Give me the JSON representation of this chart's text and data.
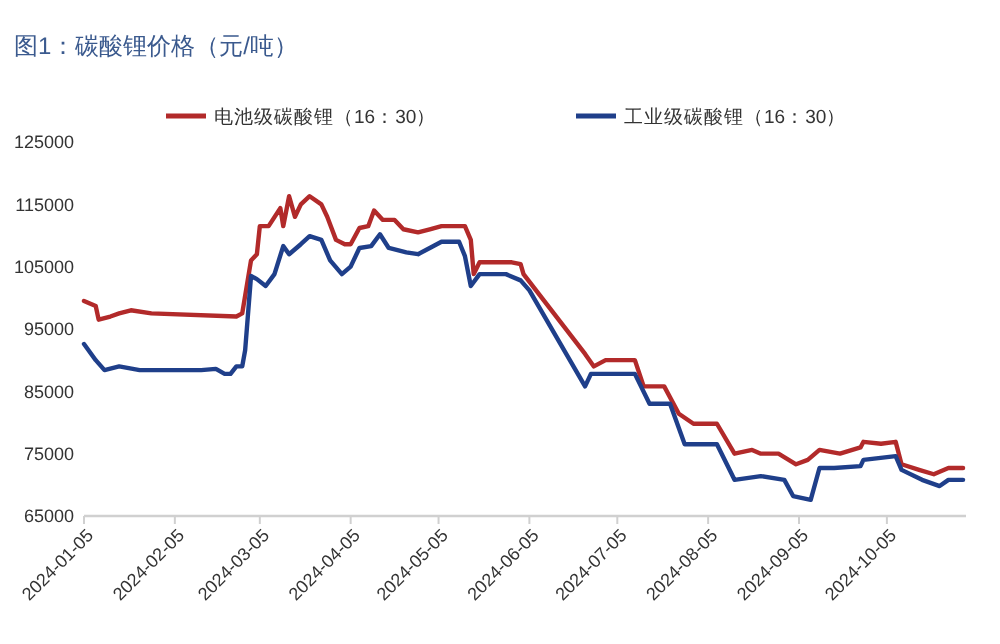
{
  "chart_data": {
    "type": "line",
    "title": "图1：碳酸锂价格（元/吨）",
    "legend": "top",
    "grid": false,
    "marker": "none",
    "line_style": "solid",
    "xlim": [
      "2024-01-05",
      "2024-11-01"
    ],
    "xticks": [
      "2024-01-05",
      "2024-02-05",
      "2024-03-05",
      "2024-04-05",
      "2024-05-05",
      "2024-06-05",
      "2024-07-05",
      "2024-08-05",
      "2024-09-05",
      "2024-10-05"
    ],
    "ylim": [
      65000,
      125000
    ],
    "yticks": [
      65000,
      75000,
      85000,
      95000,
      105000,
      115000,
      125000
    ],
    "series": [
      {
        "name": "电池级碳酸锂（16：30）",
        "color": "#b22a2a",
        "x": [
          "2024-01-05",
          "2024-01-09",
          "2024-01-10",
          "2024-01-14",
          "2024-01-17",
          "2024-01-21",
          "2024-01-28",
          "2024-02-26",
          "2024-02-28",
          "2024-03-02",
          "2024-03-04",
          "2024-03-05",
          "2024-03-08",
          "2024-03-12",
          "2024-03-13",
          "2024-03-15",
          "2024-03-17",
          "2024-03-19",
          "2024-03-22",
          "2024-03-26",
          "2024-03-28",
          "2024-03-31",
          "2024-04-03",
          "2024-04-05",
          "2024-04-08",
          "2024-04-11",
          "2024-04-13",
          "2024-04-16",
          "2024-04-20",
          "2024-04-23",
          "2024-04-28",
          "2024-05-02",
          "2024-05-06",
          "2024-05-14",
          "2024-05-16",
          "2024-05-17",
          "2024-05-19",
          "2024-05-30",
          "2024-06-02",
          "2024-06-03",
          "2024-06-24",
          "2024-06-27",
          "2024-07-01",
          "2024-07-11",
          "2024-07-14",
          "2024-07-21",
          "2024-07-26",
          "2024-07-31",
          "2024-08-08",
          "2024-08-14",
          "2024-08-20",
          "2024-08-23",
          "2024-08-29",
          "2024-09-04",
          "2024-09-08",
          "2024-09-12",
          "2024-09-19",
          "2024-09-26",
          "2024-09-27",
          "2024-10-03",
          "2024-10-08",
          "2024-10-10",
          "2024-10-16",
          "2024-10-21",
          "2024-10-26",
          "2024-10-31"
        ],
        "values": [
          99500,
          98700,
          96500,
          97000,
          97500,
          98000,
          97500,
          97000,
          97500,
          106000,
          107000,
          111500,
          111500,
          114400,
          111500,
          116300,
          113000,
          115000,
          116300,
          115000,
          113000,
          109300,
          108600,
          108600,
          111200,
          111500,
          114000,
          112500,
          112500,
          111000,
          110500,
          111000,
          111500,
          111500,
          109300,
          103800,
          105700,
          105700,
          105400,
          103800,
          91000,
          89000,
          90000,
          90000,
          85800,
          85800,
          81400,
          79800,
          79800,
          75000,
          75600,
          75000,
          75000,
          73300,
          74000,
          75600,
          75000,
          76000,
          76900,
          76600,
          76900,
          73300,
          72400,
          71700,
          72700,
          72700
        ]
      },
      {
        "name": "工业级碳酸锂（16：30）",
        "color": "#1f3f8a",
        "x": [
          "2024-01-05",
          "2024-01-09",
          "2024-01-12",
          "2024-01-17",
          "2024-01-24",
          "2024-02-14",
          "2024-02-19",
          "2024-02-22",
          "2024-02-24",
          "2024-02-26",
          "2024-02-28",
          "2024-02-29",
          "2024-03-02",
          "2024-03-04",
          "2024-03-07",
          "2024-03-10",
          "2024-03-13",
          "2024-03-15",
          "2024-03-19",
          "2024-03-22",
          "2024-03-26",
          "2024-03-29",
          "2024-04-02",
          "2024-04-05",
          "2024-04-08",
          "2024-04-12",
          "2024-04-15",
          "2024-04-18",
          "2024-04-24",
          "2024-04-28",
          "2024-05-02",
          "2024-05-06",
          "2024-05-12",
          "2024-05-14",
          "2024-05-16",
          "2024-05-19",
          "2024-05-28",
          "2024-06-02",
          "2024-06-05",
          "2024-06-24",
          "2024-06-26",
          "2024-07-02",
          "2024-07-11",
          "2024-07-16",
          "2024-07-23",
          "2024-07-28",
          "2024-08-08",
          "2024-08-14",
          "2024-08-23",
          "2024-08-31",
          "2024-09-03",
          "2024-09-09",
          "2024-09-12",
          "2024-09-17",
          "2024-09-26",
          "2024-09-27",
          "2024-10-08",
          "2024-10-10",
          "2024-10-17",
          "2024-10-23",
          "2024-10-26",
          "2024-10-31"
        ],
        "values": [
          92600,
          90000,
          88400,
          89000,
          88400,
          88400,
          88600,
          87800,
          87800,
          89000,
          89000,
          91600,
          103500,
          103000,
          101900,
          103800,
          108300,
          107000,
          108600,
          109900,
          109300,
          106000,
          103800,
          105000,
          108000,
          108300,
          110200,
          108000,
          107300,
          107000,
          108000,
          109000,
          109000,
          106700,
          101900,
          103800,
          103800,
          102800,
          101200,
          85800,
          87800,
          87800,
          87800,
          83000,
          83000,
          76500,
          76500,
          70800,
          71400,
          70800,
          68200,
          67600,
          72700,
          72700,
          73000,
          74000,
          74600,
          72400,
          70800,
          69800,
          70800,
          70800
        ]
      }
    ]
  }
}
